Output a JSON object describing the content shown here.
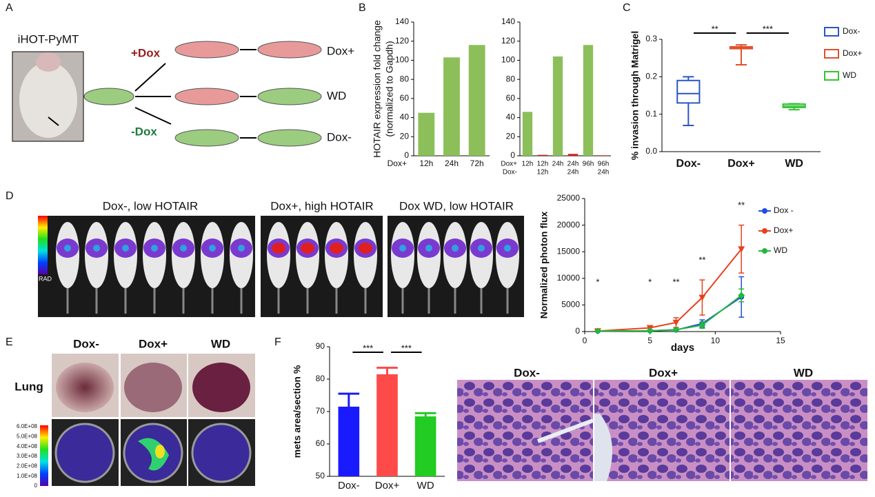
{
  "chart_data": [
    {
      "type": "bar",
      "ylabel": "HOTAIR expression fold change",
      "ylabel_2": "(normalized to Gapdh)",
      "categories": [
        "12h",
        "24h",
        "72h"
      ],
      "category_rows": [
        "Dox+"
      ],
      "values": [
        45,
        103,
        116
      ],
      "color": "#8cbf5a",
      "ylim": [
        0,
        140
      ],
      "yticks": [
        0,
        20,
        40,
        60,
        80,
        100,
        120,
        140
      ]
    },
    {
      "type": "bar",
      "categories": [
        "12h",
        "12h",
        "24h",
        "24h",
        "96h",
        "96h"
      ],
      "categories_2": [
        null,
        "12h",
        null,
        "24h",
        null,
        "24h"
      ],
      "category_rows": [
        "Dox+",
        "Dox-"
      ],
      "series": [
        {
          "color": "#8cbf5a",
          "values": [
            46,
            null,
            104,
            null,
            116,
            null
          ]
        },
        {
          "color": "#d62020",
          "values": [
            null,
            1,
            null,
            2,
            null,
            0.5
          ]
        }
      ],
      "ylim": [
        0,
        140
      ],
      "yticks": [
        0,
        20,
        40,
        60,
        80,
        100,
        120,
        140
      ]
    },
    {
      "type": "box",
      "ylabel": "% invasion through Matrigel",
      "categories": [
        "Dox-",
        "Dox+",
        "WD"
      ],
      "boxes": [
        {
          "min": 0.07,
          "q1": 0.13,
          "median": 0.155,
          "q3": 0.19,
          "max": 0.2
        },
        {
          "min": 0.232,
          "q1": 0.275,
          "median": 0.277,
          "q3": 0.28,
          "max": 0.285
        },
        {
          "min": 0.112,
          "q1": 0.118,
          "median": 0.122,
          "q3": 0.127,
          "max": 0.128
        }
      ],
      "legend": [
        {
          "name": "Dox-",
          "color": "#2a55c4"
        },
        {
          "name": "Dox+",
          "color": "#e0502a"
        },
        {
          "name": "WD",
          "color": "#33c233"
        }
      ],
      "significance": [
        "**",
        "***"
      ],
      "ylim": [
        0,
        0.3
      ],
      "yticks": [
        {
          "value": 0,
          "label": "0.0"
        },
        0.1,
        0.2,
        0.3
      ]
    },
    {
      "type": "line",
      "xlabel": "days",
      "ylabel": "Normalized photon flux",
      "x": [
        1,
        5,
        7,
        9,
        12
      ],
      "series": [
        {
          "name": "Dox -",
          "color": "#1f4fe0",
          "marker": "circle",
          "values": [
            100,
            150,
            300,
            1500,
            6500
          ],
          "errors": [
            80,
            100,
            200,
            700,
            3800
          ]
        },
        {
          "name": "Dox+",
          "color": "#e8401c",
          "marker": "triangle",
          "values": [
            100,
            700,
            1700,
            6400,
            15500
          ],
          "errors": [
            100,
            400,
            900,
            3300,
            4500
          ]
        },
        {
          "name": "WD",
          "color": "#22b83a",
          "marker": "diamond",
          "values": [
            100,
            150,
            350,
            1200,
            6800
          ],
          "errors": [
            80,
            100,
            200,
            600,
            1200
          ]
        }
      ],
      "annotations": [
        "*",
        "*",
        "**",
        "**",
        "**"
      ],
      "xlim": [
        0,
        15
      ],
      "xticks": [
        0,
        5,
        10,
        15
      ],
      "ylim": [
        0,
        25000
      ],
      "yticks": [
        0,
        5000,
        10000,
        15000,
        20000,
        25000
      ]
    },
    {
      "type": "bar",
      "ylabel": "mets area/section %",
      "categories": [
        "Dox-",
        "Dox+",
        "WD"
      ],
      "values": [
        71.5,
        81.5,
        68.5
      ],
      "errors": [
        4,
        2,
        1
      ],
      "colors": [
        "#1a1aff",
        "#ff4a4a",
        "#22cc22"
      ],
      "significance": [
        "***",
        "***"
      ],
      "ylim": [
        50,
        90
      ],
      "yticks": [
        50,
        60,
        70,
        80,
        90
      ]
    }
  ],
  "labels": {
    "panel_letters": [
      "A",
      "B",
      "C",
      "D",
      "E",
      "F"
    ],
    "a": {
      "model": "iHOT-PyMT",
      "plus": "+Dox",
      "minus": "-Dox",
      "rows": [
        "Dox+",
        "WD",
        "Dox-"
      ]
    },
    "d": {
      "titles": [
        "Dox-, low HOTAIR",
        "Dox+, high HOTAIR",
        "Dox WD, low HOTAIR"
      ],
      "scale": "RAD"
    },
    "e": {
      "columns": [
        "Dox-",
        "Dox+",
        "WD"
      ],
      "row": "Lung",
      "colorbar": [
        "6.0E+08",
        "5.0E+08",
        "4.0E+08",
        "3.0E+08",
        "2.0E+08",
        "1.0E+08",
        "0"
      ]
    },
    "f": {
      "columns": [
        "Dox-",
        "Dox+",
        "WD"
      ]
    }
  }
}
